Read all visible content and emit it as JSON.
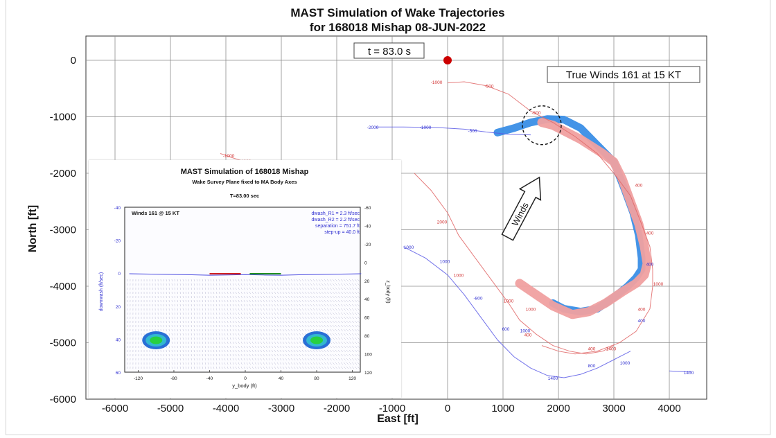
{
  "chart_data": [
    {
      "type": "line",
      "title": "MAST Simulation of Wake Trajectories",
      "subtitle": "for 168018 Mishap 08-JUN-2022",
      "xlabel": "East [ft]",
      "ylabel": "North [ft]",
      "xlim": [
        -6500,
        4600
      ],
      "ylim": [
        -6000,
        400
      ],
      "xticks": [
        "-6000",
        "-5000",
        "-4000",
        "-3000",
        "-2000",
        "-1000",
        "0",
        "1000",
        "2000",
        "3000",
        "4000"
      ],
      "yticks": [
        "0",
        "-1000",
        "-2000",
        "-3000",
        "-4000",
        "-5000",
        "-6000"
      ],
      "grid": true,
      "time_label": "t =   83.0 s",
      "winds_box": "True Winds 161 at 15 KT",
      "winds_arrow_label": "Winds",
      "aircraft_position": {
        "x": 0,
        "y": 0
      },
      "circle_center": {
        "x": 1700,
        "y": -1150
      },
      "colors": {
        "red_track": "#e06666",
        "blue_track": "#5a5ae6",
        "red_core": "#f0a0a0",
        "blue_core": "#3a8ee6",
        "aircraft": "#cc0000"
      },
      "series": [
        {
          "color": "red",
          "x": [
            0,
            300,
            700,
            1100,
            1500,
            1900,
            2300,
            2700,
            3000,
            3300,
            3500,
            3650,
            3700,
            3700,
            3650,
            3400,
            3100,
            2700,
            2300,
            2000,
            1700
          ],
          "y": [
            -400,
            -380,
            -450,
            -600,
            -900,
            -1100,
            -1350,
            -1650,
            -2000,
            -2400,
            -2900,
            -3300,
            -3700,
            -4000,
            -4400,
            -4800,
            -5000,
            -5150,
            -5200,
            -5150,
            -5050
          ]
        },
        {
          "color": "blue",
          "x": [
            -1300,
            -800,
            -200,
            300,
            700,
            1100,
            1500
          ],
          "y": [
            -1180,
            -1180,
            -1190,
            -1220,
            -1270,
            -1310,
            -1320
          ]
        },
        {
          "color": "red",
          "x": [
            -600,
            -300,
            0,
            200,
            500,
            800,
            1100,
            1300,
            1600,
            1900,
            2200,
            2500,
            2800,
            3000
          ],
          "y": [
            -2000,
            -2300,
            -2700,
            -3100,
            -3500,
            -3900,
            -4300,
            -4600,
            -4850,
            -5050,
            -5150,
            -5200,
            -5150,
            -5050
          ]
        },
        {
          "color": "blue",
          "x": [
            -800,
            -400,
            0,
            300,
            600,
            900,
            1200,
            1500,
            1800,
            2100,
            2400,
            2700,
            3000,
            3300
          ],
          "y": [
            -3300,
            -3500,
            -3800,
            -4150,
            -4550,
            -4950,
            -5250,
            -5450,
            -5580,
            -5620,
            -5560,
            -5450,
            -5300,
            -5150
          ]
        },
        {
          "color": "red",
          "x": [
            -4100,
            -3900,
            -3700,
            -3450
          ],
          "y": [
            -1650,
            -1720,
            -1780,
            -1850
          ]
        },
        {
          "color": "blue",
          "x": [
            4000,
            4400
          ],
          "y": [
            -5500,
            -5520
          ]
        }
      ],
      "blue_core_band": {
        "x": [
          900,
          1200,
          1500,
          1800,
          2100,
          2400,
          2700,
          3000,
          3200,
          3350,
          3450,
          3500,
          3500,
          3400,
          3250,
          3000,
          2700,
          2400,
          2100,
          1900
        ],
        "y": [
          -1280,
          -1200,
          -1100,
          -1040,
          -1050,
          -1200,
          -1500,
          -1800,
          -2300,
          -2700,
          -3100,
          -3500,
          -3700,
          -3850,
          -4000,
          -4200,
          -4400,
          -4450,
          -4400,
          -4300
        ]
      },
      "red_core_band": {
        "x": [
          1700,
          1900,
          2100,
          2400,
          2800,
          3000,
          3150,
          3300,
          3450,
          3550,
          3600,
          3550,
          3400,
          3150,
          2850,
          2550,
          2250,
          1900,
          1600,
          1300
        ],
        "y": [
          -1100,
          -1150,
          -1250,
          -1400,
          -1650,
          -1800,
          -2100,
          -2500,
          -2900,
          -3300,
          -3600,
          -3800,
          -3950,
          -4100,
          -4300,
          -4450,
          -4500,
          -4350,
          -4150,
          -3950
        ]
      },
      "track_labels": [
        {
          "text": "-2000",
          "x": -1350,
          "y": -1180,
          "color": "blue"
        },
        {
          "text": "-1000",
          "x": -400,
          "y": -1180,
          "color": "blue"
        },
        {
          "text": "-500",
          "x": 450,
          "y": -1240,
          "color": "blue"
        },
        {
          "text": "-1000",
          "x": -200,
          "y": -380,
          "color": "red"
        },
        {
          "text": "-500",
          "x": 750,
          "y": -450,
          "color": "red"
        },
        {
          "text": "-500",
          "x": 1600,
          "y": -920,
          "color": "red"
        },
        {
          "text": "-1000",
          "x": -3950,
          "y": -1680,
          "color": "red"
        },
        {
          "text": "-1000",
          "x": -3650,
          "y": -1780,
          "color": "red"
        },
        {
          "text": "2000",
          "x": -1000,
          "y": -2550,
          "color": "red"
        },
        {
          "text": "2000",
          "x": -100,
          "y": -2850,
          "color": "red"
        },
        {
          "text": "1000",
          "x": -700,
          "y": -3300,
          "color": "blue"
        },
        {
          "text": "1000",
          "x": -50,
          "y": -3550,
          "color": "blue"
        },
        {
          "text": "1000",
          "x": 200,
          "y": -3800,
          "color": "red"
        },
        {
          "text": "-800",
          "x": 550,
          "y": -4200,
          "color": "blue"
        },
        {
          "text": "1000",
          "x": 1100,
          "y": -4250,
          "color": "red"
        },
        {
          "text": "1000",
          "x": 1500,
          "y": -4400,
          "color": "red"
        },
        {
          "text": "600",
          "x": 1050,
          "y": -4750,
          "color": "blue"
        },
        {
          "text": "1000",
          "x": 1400,
          "y": -4780,
          "color": "blue"
        },
        {
          "text": "400",
          "x": 1450,
          "y": -4850,
          "color": "red"
        },
        {
          "text": "400",
          "x": 2600,
          "y": -5100,
          "color": "red"
        },
        {
          "text": "800",
          "x": 2600,
          "y": -5400,
          "color": "blue"
        },
        {
          "text": "1400",
          "x": 2950,
          "y": -5100,
          "color": "red"
        },
        {
          "text": "1000",
          "x": 3200,
          "y": -5350,
          "color": "blue"
        },
        {
          "text": "1400",
          "x": 1900,
          "y": -5620,
          "color": "blue"
        },
        {
          "text": "400",
          "x": 3450,
          "y": -2200,
          "color": "red"
        },
        {
          "text": "400",
          "x": 3650,
          "y": -3050,
          "color": "red"
        },
        {
          "text": "400",
          "x": 3650,
          "y": -3600,
          "color": "blue"
        },
        {
          "text": "1000",
          "x": 3800,
          "y": -3950,
          "color": "red"
        },
        {
          "text": "400",
          "x": 3500,
          "y": -4400,
          "color": "red"
        },
        {
          "text": "400",
          "x": 3500,
          "y": -4600,
          "color": "blue"
        },
        {
          "text": "1400",
          "x": 4350,
          "y": -5520,
          "color": "blue"
        }
      ]
    },
    {
      "type": "heatmap",
      "title": "MAST Simulation of 168018 Mishap",
      "subtitle": "Wake Survey Plane fixed to MA Body Axes",
      "time_label": "T=83.00 sec",
      "winds_label": "Winds 161 @ 15 KT",
      "stats": [
        "dwash_R1 = 2.3 ft/sec",
        "dwash_R2 = 2.2 ft/sec",
        "separation = 751.7 ft",
        "step-up = 40.0 ft"
      ],
      "xlabel": "y_body (ft)",
      "ylabel_left": "downwash (ft/sec)",
      "ylabel_right": "z_body (ft)",
      "xlim": [
        -130,
        130
      ],
      "xticks": [
        "-120",
        "-80",
        "-40",
        "0",
        "40",
        "80",
        "120"
      ],
      "left_ticks": [
        "-40",
        "-20",
        "0",
        "20",
        "40",
        "60"
      ],
      "right_ticks": [
        "-60",
        "-40",
        "-20",
        "0",
        "20",
        "40",
        "60",
        "80",
        "100",
        "120"
      ],
      "vortex_cores": [
        {
          "y_body": -100,
          "z_body": 80
        },
        {
          "y_body": 80,
          "z_body": 80
        }
      ],
      "markers": [
        {
          "color": "red",
          "y_range": [
            -40,
            -5
          ],
          "z_body": 0
        },
        {
          "color": "green",
          "y_range": [
            5,
            40
          ],
          "z_body": 0
        }
      ],
      "downwash_line": {
        "y": [
          -130,
          -100,
          -60,
          -40,
          -20,
          0,
          20,
          40,
          60,
          100,
          130
        ],
        "v": [
          0,
          -0.2,
          -0.5,
          -0.7,
          -0.6,
          -0.4,
          -0.6,
          -0.7,
          -0.5,
          -0.2,
          0
        ]
      }
    }
  ]
}
